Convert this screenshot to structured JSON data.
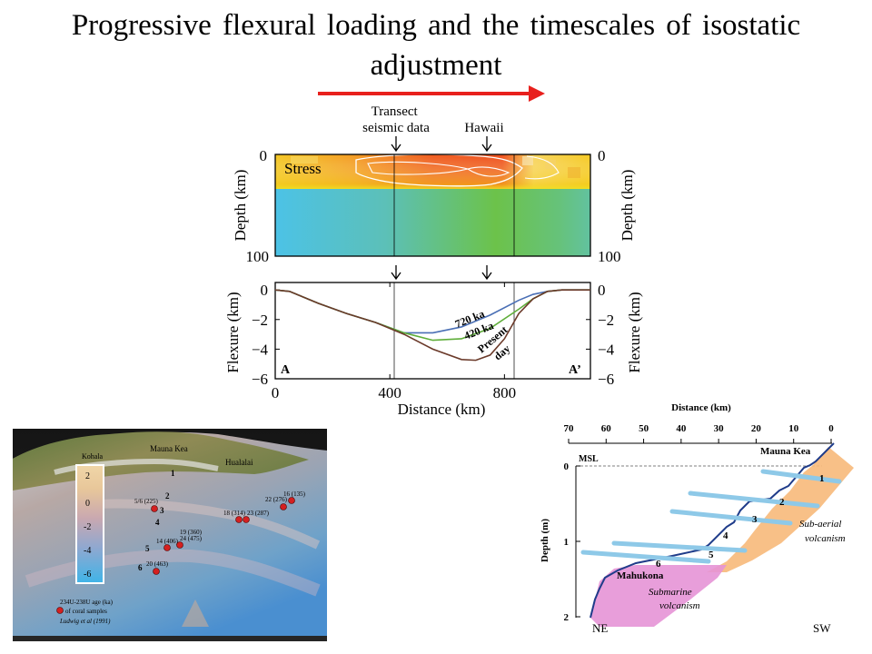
{
  "slide": {
    "title": "Progressive flexural loading and the timescales of isostatic adjustment"
  },
  "colors": {
    "arrow": "#e8201d",
    "ocean_low": "#4fc3e0",
    "ocean_high": "#6cc24a",
    "stress_hot": "#f0581c",
    "stress_warm": "#f5c81c",
    "curve_720": "#4a6fb5",
    "curve_420": "#5fae3a",
    "curve_present": "#6b3a2a",
    "reef_shelf": "#8ec9e8",
    "subaerial": "#f7b97a",
    "submarine": "#e594d6",
    "profile_line": "#1f3c8a"
  },
  "labels": {
    "transect": "Transect\nseismic data",
    "hawaii": "Hawaii"
  },
  "stress_panel": {
    "label": "Stress",
    "ylabel": "Depth (km)",
    "yticks": [
      "0",
      "100"
    ]
  },
  "flexure_chart": {
    "ylabel": "Flexure (km)",
    "xlabel": "Distance (km)",
    "xticks": [
      "0",
      "400",
      "800"
    ],
    "yticks": [
      "0",
      "−2",
      "−4",
      "−6"
    ],
    "corner_left": "A",
    "corner_right": "A’",
    "curve_labels": [
      "720 ka",
      "420 ka",
      "Present",
      "day"
    ]
  },
  "chart_data": {
    "type": "line",
    "xlabel": "Distance (km)",
    "ylabel": "Flexure (km)",
    "xlim": [
      0,
      1100
    ],
    "ylim": [
      -6,
      0.5
    ],
    "series": [
      {
        "name": "720 ka",
        "x": [
          0,
          50,
          150,
          250,
          350,
          450,
          550,
          650,
          750,
          850,
          900,
          950,
          1000,
          1100
        ],
        "y": [
          0,
          -0.1,
          -0.9,
          -1.6,
          -2.2,
          -2.9,
          -2.9,
          -2.5,
          -1.7,
          -0.7,
          -0.3,
          -0.1,
          0,
          0
        ]
      },
      {
        "name": "420 ka",
        "x": [
          0,
          50,
          150,
          250,
          350,
          450,
          550,
          650,
          750,
          850,
          900,
          950,
          1000,
          1100
        ],
        "y": [
          0,
          -0.1,
          -0.9,
          -1.6,
          -2.2,
          -2.9,
          -3.4,
          -3.3,
          -2.6,
          -1.3,
          -0.6,
          -0.1,
          0,
          0
        ]
      },
      {
        "name": "Present day",
        "x": [
          0,
          50,
          150,
          250,
          350,
          450,
          550,
          650,
          700,
          750,
          800,
          850,
          900,
          950,
          1000,
          1100
        ],
        "y": [
          0,
          -0.1,
          -0.9,
          -1.6,
          -2.2,
          -3.0,
          -4.0,
          -4.7,
          -4.75,
          -4.4,
          -3.3,
          -1.6,
          -0.6,
          -0.1,
          0,
          0
        ]
      }
    ]
  },
  "map_panel": {
    "place_kohala": "Kohala",
    "place_mauna_kea": "Mauna Kea",
    "place_hualalai": "Hualalai",
    "scale_values": [
      "2",
      "0",
      "-2",
      "-4",
      "-6"
    ],
    "legend_line1": "234U-238U age (ka)",
    "legend_line2": "of coral samples",
    "legend_credit": "Ludwig et al (1991)",
    "samples": [
      {
        "label": "1",
        "age": ""
      },
      {
        "label": "2",
        "age": ""
      },
      {
        "label": "3",
        "age": "5/6 (225)"
      },
      {
        "label": "4",
        "age": ""
      },
      {
        "label": "5",
        "age": "14 (406)"
      },
      {
        "label": "6",
        "age": "20 (463)"
      },
      {
        "label": "",
        "age": "19 (360)"
      },
      {
        "label": "",
        "age": "24 (475)"
      },
      {
        "label": "",
        "age": "18 (314)"
      },
      {
        "label": "",
        "age": "23 (287)"
      },
      {
        "label": "",
        "age": "22 (276)"
      },
      {
        "label": "",
        "age": "16 (135)"
      }
    ]
  },
  "profile_panel": {
    "title": "Distance (km)",
    "xticks": [
      "70",
      "60",
      "50",
      "40",
      "30",
      "20",
      "10",
      "0"
    ],
    "ylabel": "Depth (m)",
    "yticks": [
      "0",
      "1",
      "2"
    ],
    "msl": "MSL",
    "mauna_kea": "Mauna Kea",
    "mahukona": "Mahukona",
    "subaerial": "Sub-aerial\nvolcanism",
    "submarine": "Submarine\nvolcanism",
    "reef_numbers": [
      "1",
      "2",
      "3",
      "4",
      "5",
      "6"
    ],
    "corner_ne": "NE",
    "corner_sw": "SW"
  }
}
